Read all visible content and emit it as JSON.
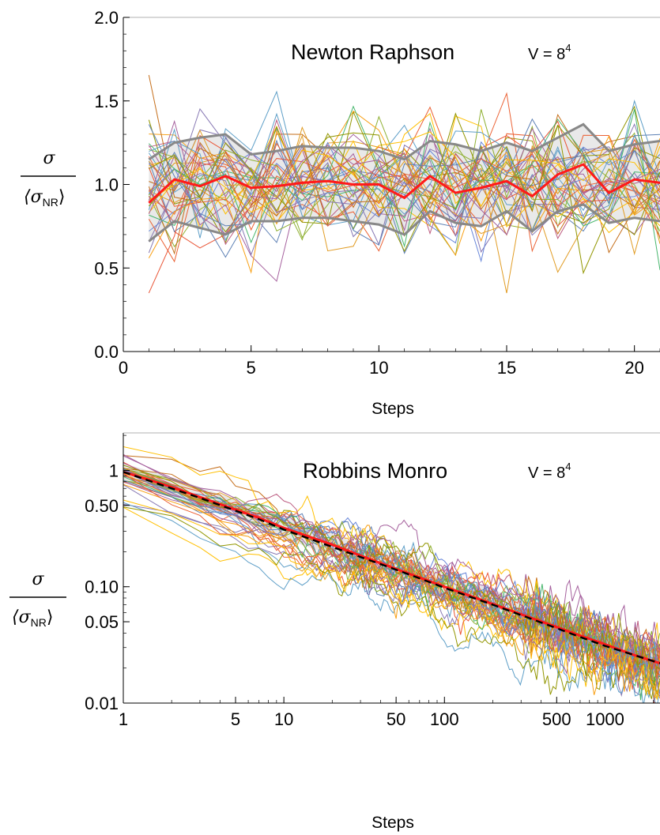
{
  "chart_data": [
    {
      "type": "line",
      "title": "Newton Raphson",
      "volume_label": "V = 8",
      "volume_exponent": "4",
      "xlabel": "Steps",
      "ylabel": {
        "numerator": "σ",
        "denominator": "⟨σ",
        "subscript": "NR",
        "closing": "⟩"
      },
      "xlim": [
        0,
        21
      ],
      "ylim": [
        0.0,
        2.0
      ],
      "x_ticks": [
        "0",
        "5",
        "10",
        "15",
        "20"
      ],
      "y_ticks": [
        "0.0",
        "0.5",
        "1.0",
        "1.5",
        "2.0"
      ],
      "x": [
        1,
        2,
        3,
        4,
        5,
        6,
        7,
        8,
        9,
        10,
        11,
        12,
        13,
        14,
        15,
        16,
        17,
        18,
        19,
        20,
        21
      ],
      "series": [
        {
          "role": "mean",
          "color": "#ff1a1a",
          "values": [
            0.89,
            1.03,
            0.99,
            1.05,
            0.98,
            0.99,
            1.01,
            1.02,
            1.0,
            1.0,
            0.92,
            1.05,
            0.95,
            0.98,
            1.02,
            0.93,
            1.06,
            1.12,
            0.95,
            1.03,
            1.01
          ]
        },
        {
          "role": "band-upper",
          "color": "#888888",
          "values": [
            1.15,
            1.25,
            1.28,
            1.3,
            1.18,
            1.2,
            1.23,
            1.22,
            1.22,
            1.2,
            1.15,
            1.26,
            1.24,
            1.2,
            1.25,
            1.2,
            1.28,
            1.36,
            1.2,
            1.24,
            1.26
          ]
        },
        {
          "role": "band-lower",
          "color": "#888888",
          "values": [
            0.66,
            0.78,
            0.74,
            0.7,
            0.78,
            0.78,
            0.8,
            0.8,
            0.78,
            0.76,
            0.7,
            0.84,
            0.77,
            0.75,
            0.84,
            0.72,
            0.84,
            0.88,
            0.77,
            0.8,
            0.78
          ]
        }
      ],
      "bundle": {
        "count": 40,
        "spread": 0.2,
        "colors": [
          "#5e81b5",
          "#e19c24",
          "#8fb032",
          "#eb6235",
          "#8778b3",
          "#c56e1a",
          "#5d9ec7",
          "#ffbf00",
          "#a5609d",
          "#929600",
          "#e95536",
          "#6685d9",
          "#f89f13",
          "#bc5b80",
          "#47b66d"
        ]
      }
    },
    {
      "type": "line",
      "title": "Robbins Monro",
      "volume_label": "V = 8",
      "volume_exponent": "4",
      "xlabel": "Steps",
      "ylabel": {
        "numerator": "σ",
        "denominator": "⟨σ",
        "subscript": "NR",
        "closing": "⟩"
      },
      "x_scale": "log",
      "y_scale": "log",
      "xlim": [
        1,
        2200
      ],
      "ylim": [
        0.01,
        2.1
      ],
      "x_ticks": [
        "1",
        "5",
        "10",
        "50",
        "100",
        "500",
        "1000"
      ],
      "y_ticks": [
        "0.01",
        "0.05",
        "0.10",
        "0.50",
        "1"
      ],
      "x": [
        1,
        2,
        3,
        5,
        7,
        10,
        20,
        30,
        50,
        70,
        100,
        200,
        300,
        500,
        700,
        1000,
        1500,
        2200
      ],
      "series": [
        {
          "role": "mean",
          "color": "#ff1a1a",
          "values": [
            0.97,
            0.72,
            0.59,
            0.46,
            0.39,
            0.32,
            0.23,
            0.185,
            0.142,
            0.12,
            0.1,
            0.071,
            0.058,
            0.045,
            0.038,
            0.032,
            0.026,
            0.022
          ]
        },
        {
          "role": "fit",
          "color": "#000000",
          "style": "dashed",
          "values": [
            0.97,
            0.7,
            0.58,
            0.45,
            0.38,
            0.31,
            0.22,
            0.18,
            0.14,
            0.118,
            0.098,
            0.07,
            0.057,
            0.044,
            0.037,
            0.031,
            0.026,
            0.022
          ]
        },
        {
          "role": "band-upper",
          "color": "#888888",
          "values": [
            1.15,
            0.87,
            0.72,
            0.56,
            0.48,
            0.4,
            0.29,
            0.23,
            0.18,
            0.155,
            0.13,
            0.094,
            0.078,
            0.061,
            0.052,
            0.044,
            0.036,
            0.031
          ]
        },
        {
          "role": "band-lower",
          "color": "#888888",
          "values": [
            0.8,
            0.6,
            0.49,
            0.38,
            0.32,
            0.26,
            0.185,
            0.15,
            0.115,
            0.097,
            0.08,
            0.056,
            0.045,
            0.035,
            0.029,
            0.024,
            0.02,
            0.017
          ]
        }
      ],
      "bundle": {
        "count": 40,
        "spread": 0.22,
        "colors": [
          "#5e81b5",
          "#e19c24",
          "#8fb032",
          "#eb6235",
          "#8778b3",
          "#c56e1a",
          "#5d9ec7",
          "#ffbf00",
          "#a5609d",
          "#929600",
          "#e95536",
          "#6685d9",
          "#f89f13",
          "#bc5b80",
          "#47b66d"
        ]
      }
    }
  ]
}
